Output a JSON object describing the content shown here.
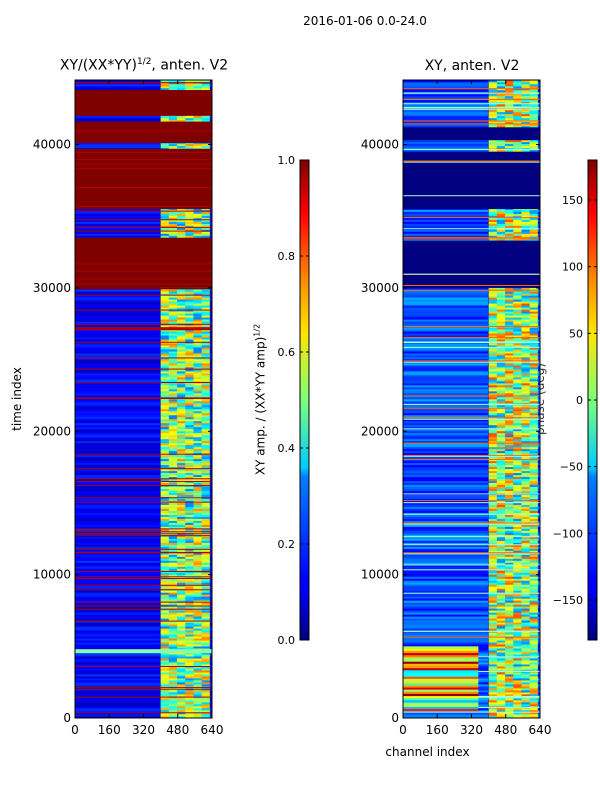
{
  "suptitle": "2016-01-06 0.0-24.0",
  "chart_data": [
    {
      "type": "heatmap",
      "title": "XY/(XX*YY)^{1/2}, anten. V2",
      "title_main": "XY/(XX*YY)",
      "title_exp": "1/2",
      "title_tail": ", anten. V2",
      "xlabel": "",
      "ylabel": "time index",
      "xlim": [
        0,
        640
      ],
      "ylim": [
        0,
        44500
      ],
      "x_ticks": [
        0,
        160,
        320,
        480,
        640
      ],
      "y_ticks": [
        0,
        10000,
        20000,
        30000,
        40000
      ],
      "colorbar": {
        "label": "XY amp. / (XX*YY amp)^{1/2}",
        "label_main": "XY amp. / (XX*YY amp)",
        "label_exp": "1/2",
        "range": [
          0.0,
          1.0
        ],
        "ticks": [
          0.0,
          0.2,
          0.4,
          0.6,
          0.8,
          1.0
        ],
        "tick_labels": [
          "0.0",
          "0.2",
          "0.4",
          "0.6",
          "0.8",
          "1.0"
        ]
      },
      "blocks": [
        {
          "y0": 42000,
          "y1": 43800,
          "value": 1.0
        },
        {
          "y0": 40100,
          "y1": 41600,
          "value": 1.0
        },
        {
          "y0": 35500,
          "y1": 39700,
          "value": 1.0
        },
        {
          "y0": 30000,
          "y1": 33500,
          "value": 1.0
        },
        {
          "y0": 29900,
          "y1": 30000,
          "value": 1.0
        }
      ],
      "band": {
        "x0": 400,
        "x1": 630,
        "value": 0.5
      }
    },
    {
      "type": "heatmap",
      "title": "XY, anten. V2",
      "xlabel": "channel index",
      "ylabel": "",
      "xlim": [
        0,
        640
      ],
      "ylim": [
        0,
        44500
      ],
      "x_ticks": [
        0,
        160,
        320,
        480,
        640
      ],
      "y_ticks": [
        0,
        10000,
        20000,
        30000,
        40000
      ],
      "colorbar": {
        "label": "phase (deg)",
        "range": [
          -180,
          180
        ],
        "ticks": [
          150,
          100,
          50,
          0,
          -50,
          -100,
          -150
        ],
        "tick_labels": [
          "150",
          "100",
          "50",
          "0",
          "−50",
          "−100",
          "−150"
        ]
      },
      "blocks": [
        {
          "y0": 30000,
          "y1": 33300,
          "value": -180
        },
        {
          "y0": 35500,
          "y1": 39500,
          "value": -180
        },
        {
          "y0": 40300,
          "y1": 41200,
          "value": -180
        }
      ],
      "band": {
        "x0": 400,
        "x1": 630,
        "value": 20
      }
    }
  ]
}
